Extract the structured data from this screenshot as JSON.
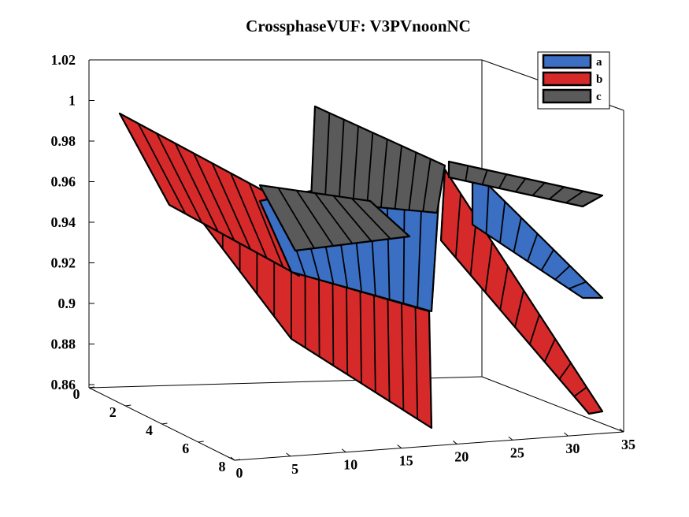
{
  "chart_data": {
    "type": "surface3d",
    "title": "CrossphaseVUF: V3PVnoonNC",
    "xlabel": "",
    "ylabel": "",
    "zlabel": "",
    "x_axis": {
      "lim": [
        0,
        35
      ],
      "ticks": [
        "0",
        "5",
        "10",
        "15",
        "20",
        "25",
        "30",
        "35"
      ]
    },
    "y_axis": {
      "lim": [
        0,
        8
      ],
      "ticks": [
        "0",
        "2",
        "4",
        "6",
        "8"
      ]
    },
    "z_axis": {
      "lim": [
        0.86,
        1.02
      ],
      "ticks": [
        "0.86",
        "0.88",
        "0.9",
        "0.92",
        "0.94",
        "0.96",
        "0.98",
        "1",
        "1.02"
      ]
    },
    "legend": {
      "placement": "top-right"
    },
    "series": [
      {
        "name": "a",
        "color": "#3a6fc4",
        "note_values": [
          0.992,
          0.975,
          0.955,
          0.935,
          0.92,
          0.945,
          0.955,
          0.96,
          0.93,
          0.905
        ]
      },
      {
        "name": "b",
        "color": "#d62a2a",
        "note_values": [
          0.992,
          0.97,
          0.94,
          0.91,
          0.885,
          0.87,
          0.89,
          0.905,
          0.88,
          0.86
        ]
      },
      {
        "name": "c",
        "color": "#5a5a5a",
        "note_values": [
          0.99,
          0.975,
          0.958,
          0.945,
          0.94,
          0.995,
          0.965,
          0.96,
          0.955,
          0.95
        ]
      }
    ],
    "grid": false
  }
}
